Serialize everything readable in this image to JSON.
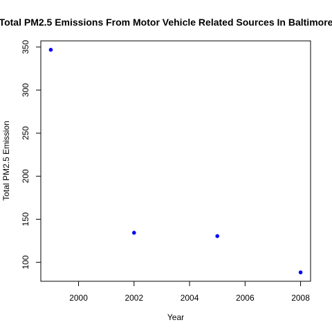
{
  "chart_data": {
    "type": "scatter",
    "title": "Total PM2.5 Emissions From Motor Vehicle Related Sources In Baltimore",
    "xlabel": "Year",
    "ylabel": "Total PM2.5 Emission",
    "x": [
      1999,
      2002,
      2005,
      2008
    ],
    "y": [
      346.8,
      134.3,
      130.4,
      88.3
    ],
    "xlim": [
      1999,
      2008
    ],
    "ylim": [
      88.3,
      346.8
    ],
    "x_ticks": [
      2000,
      2002,
      2004,
      2006,
      2008
    ],
    "y_ticks": [
      100,
      150,
      200,
      250,
      300,
      350
    ],
    "grid": false,
    "legend": "none",
    "point_color": "#0000ff",
    "frame_color": "#000000"
  }
}
